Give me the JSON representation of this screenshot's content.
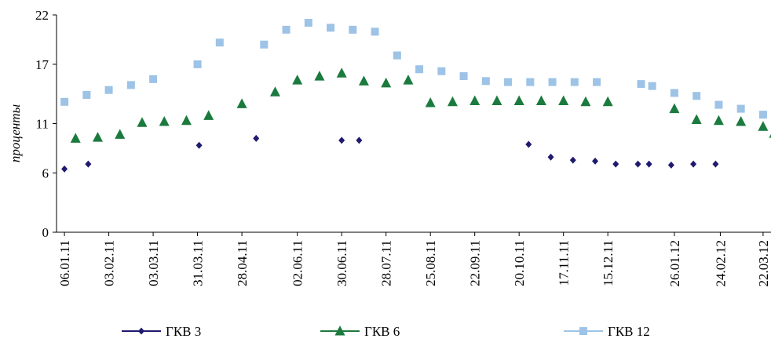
{
  "chart_data": {
    "type": "scatter",
    "title": "",
    "xlabel": "",
    "ylabel": "проценты",
    "ylim": [
      0,
      22
    ],
    "yticks": [
      "0",
      "6",
      "11",
      "17",
      "22"
    ],
    "x_tick_labels": [
      "06.01.11",
      "03.02.11",
      "03.03.11",
      "31.03.11",
      "28.04.11",
      "02.06.11",
      "30.06.11",
      "28.07.11",
      "25.08.11",
      "22.09.11",
      "20.10.11",
      "17.11.11",
      "15.12.11",
      "26.01.12",
      "24.02.12",
      "22.03.12"
    ],
    "xlim": [
      "2011-01-01",
      "2012-03-27"
    ],
    "grid": false,
    "legend_position": "bottom",
    "series": [
      {
        "name": "ГКВ 3",
        "color": "#1f1a6e",
        "marker": "diamond",
        "points": [
          [
            "2011-01-06",
            6.4
          ],
          [
            "2011-01-21",
            6.9
          ],
          [
            "2011-04-01",
            8.8
          ],
          [
            "2011-05-07",
            9.5
          ],
          [
            "2011-06-30",
            9.3
          ],
          [
            "2011-07-11",
            9.3
          ],
          [
            "2011-10-26",
            8.9
          ],
          [
            "2011-11-09",
            7.6
          ],
          [
            "2011-11-23",
            7.3
          ],
          [
            "2011-12-07",
            7.2
          ],
          [
            "2011-12-20",
            6.9
          ],
          [
            "2012-01-03",
            6.9
          ],
          [
            "2012-01-10",
            6.9
          ],
          [
            "2012-01-24",
            6.8
          ],
          [
            "2012-02-07",
            6.9
          ],
          [
            "2012-02-21",
            6.9
          ]
        ]
      },
      {
        "name": "ГКВ 6",
        "color": "#1b7a3e",
        "marker": "triangle",
        "points": [
          [
            "2011-01-13",
            9.5
          ],
          [
            "2011-01-27",
            9.6
          ],
          [
            "2011-02-10",
            9.9
          ],
          [
            "2011-02-24",
            11.1
          ],
          [
            "2011-03-10",
            11.2
          ],
          [
            "2011-03-24",
            11.3
          ],
          [
            "2011-04-07",
            11.8
          ],
          [
            "2011-04-28",
            13.0
          ],
          [
            "2011-05-19",
            14.2
          ],
          [
            "2011-06-02",
            15.4
          ],
          [
            "2011-06-16",
            15.8
          ],
          [
            "2011-06-30",
            16.1
          ],
          [
            "2011-07-14",
            15.3
          ],
          [
            "2011-07-28",
            15.1
          ],
          [
            "2011-08-11",
            15.4
          ],
          [
            "2011-08-25",
            13.1
          ],
          [
            "2011-09-08",
            13.2
          ],
          [
            "2011-09-22",
            13.3
          ],
          [
            "2011-10-06",
            13.3
          ],
          [
            "2011-10-20",
            13.3
          ],
          [
            "2011-11-03",
            13.3
          ],
          [
            "2011-11-17",
            13.3
          ],
          [
            "2011-12-01",
            13.2
          ],
          [
            "2011-12-15",
            13.2
          ],
          [
            "2012-01-26",
            12.5
          ],
          [
            "2012-02-09",
            11.4
          ],
          [
            "2012-02-23",
            11.3
          ],
          [
            "2012-03-08",
            11.2
          ],
          [
            "2012-03-22",
            10.7
          ],
          [
            "2012-03-29",
            10.0
          ]
        ]
      },
      {
        "name": "ГКВ 12",
        "color": "#9dc3e6",
        "marker": "square",
        "points": [
          [
            "2011-01-06",
            13.2
          ],
          [
            "2011-01-20",
            13.9
          ],
          [
            "2011-02-03",
            14.4
          ],
          [
            "2011-02-17",
            14.9
          ],
          [
            "2011-03-03",
            15.5
          ],
          [
            "2011-03-31",
            17.0
          ],
          [
            "2011-04-14",
            19.2
          ],
          [
            "2011-05-12",
            19.0
          ],
          [
            "2011-05-26",
            20.5
          ],
          [
            "2011-06-09",
            21.2
          ],
          [
            "2011-06-23",
            20.7
          ],
          [
            "2011-07-07",
            20.5
          ],
          [
            "2011-07-21",
            20.3
          ],
          [
            "2011-08-04",
            17.9
          ],
          [
            "2011-08-18",
            16.5
          ],
          [
            "2011-09-01",
            16.3
          ],
          [
            "2011-09-15",
            15.8
          ],
          [
            "2011-09-29",
            15.3
          ],
          [
            "2011-10-13",
            15.2
          ],
          [
            "2011-10-27",
            15.2
          ],
          [
            "2011-11-10",
            15.2
          ],
          [
            "2011-11-24",
            15.2
          ],
          [
            "2011-12-08",
            15.2
          ],
          [
            "2012-01-05",
            15.0
          ],
          [
            "2012-01-12",
            14.8
          ],
          [
            "2012-01-26",
            14.1
          ],
          [
            "2012-02-09",
            13.8
          ],
          [
            "2012-02-23",
            12.9
          ],
          [
            "2012-03-08",
            12.5
          ],
          [
            "2012-03-22",
            11.9
          ]
        ]
      }
    ]
  }
}
